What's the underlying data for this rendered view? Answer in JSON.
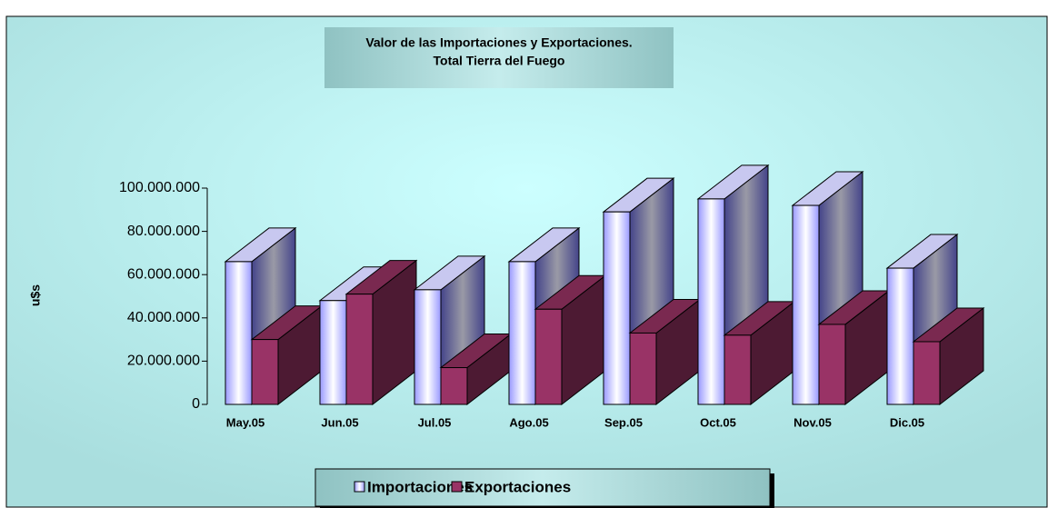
{
  "chart_data": {
    "type": "bar3d",
    "title": "Valor de las Importaciones y Exportaciones.",
    "subtitle": "Total Tierra del Fuego",
    "y_label": "u$s",
    "categories": [
      "May.05",
      "Jun.05",
      "Jul.05",
      "Ago.05",
      "Sep.05",
      "Oct.05",
      "Nov.05",
      "Dic.05"
    ],
    "series": [
      {
        "name": "Importaciones",
        "color": "#9999ff",
        "values": [
          66000000,
          48000000,
          53000000,
          66000000,
          89000000,
          95000000,
          92000000,
          63000000
        ]
      },
      {
        "name": "Exportaciones",
        "color": "#993366",
        "values": [
          30000000,
          51000000,
          17000000,
          44000000,
          33000000,
          32000000,
          37000000,
          29000000
        ]
      }
    ],
    "ylim": [
      0,
      100000000
    ],
    "yticks": [
      0,
      {
        "value": 20000000,
        "label": "20.000.000"
      },
      {
        "value": 40000000,
        "label": "40.000.000"
      },
      {
        "value": 60000000,
        "label": "60.000.000"
      },
      {
        "value": 80000000,
        "label": "80.000.000"
      },
      {
        "value": 100000000,
        "label": "100.000.000"
      }
    ],
    "legend": "bottom"
  }
}
